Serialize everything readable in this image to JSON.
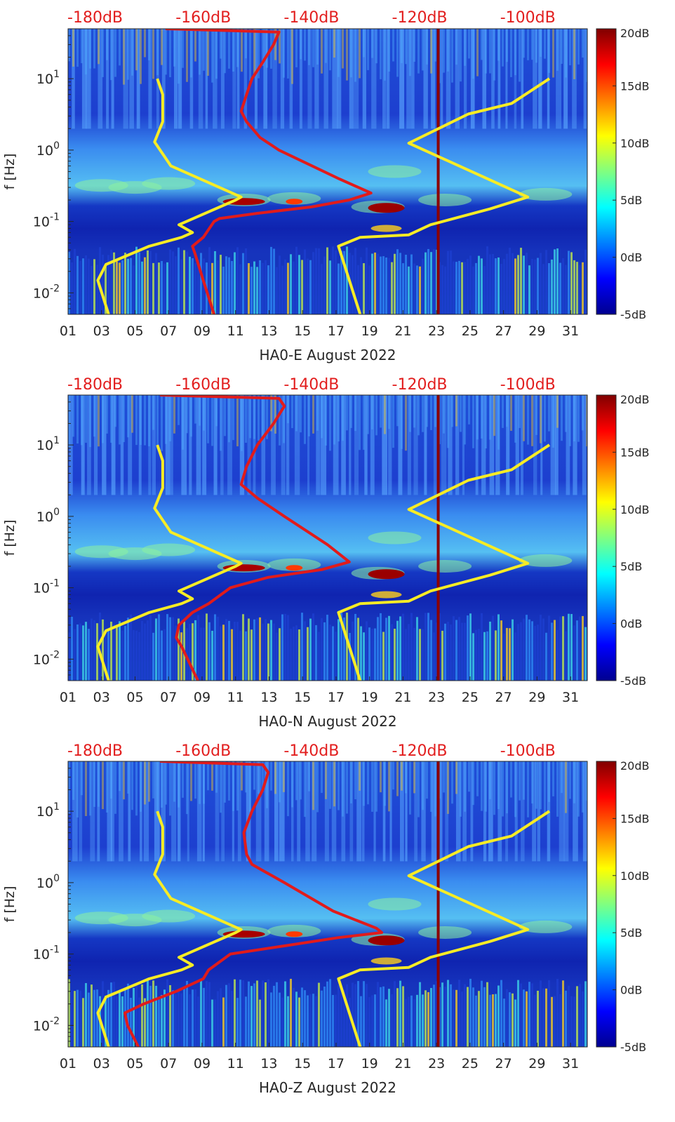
{
  "chart_data": [
    {
      "type": "heatmap",
      "title": "HA0-E August 2022",
      "xlabel": "HA0-E August 2022",
      "ylabel": "f [Hz]",
      "x_unit": "day of August 2022",
      "xlim": [
        1,
        32
      ],
      "x_ticks": [
        "01",
        "03",
        "05",
        "07",
        "09",
        "11",
        "13",
        "15",
        "17",
        "19",
        "21",
        "23",
        "25",
        "27",
        "29",
        "31"
      ],
      "y_scale": "log",
      "ylim": [
        0.005,
        50
      ],
      "y_ticks": [
        "10^-2",
        "10^-1",
        "10^0",
        "10^1"
      ],
      "top_axis_ticks": [
        "-180dB",
        "-160dB",
        "-140dB",
        "-120dB",
        "-100dB"
      ],
      "top_axis_range_db": [
        -185,
        -89
      ],
      "colorbar": {
        "ticks": [
          "20dB",
          "15dB",
          "10dB",
          "5dB",
          "0dB",
          "-5dB"
        ],
        "range": [
          -5,
          20
        ],
        "colormap": "jet"
      },
      "vertical_line_day": 23.1,
      "series": [
        {
          "name": "Noise model low (yellow)",
          "color": "#f7ec25",
          "points_db_hz": [
            [
              -177.5,
              0.005
            ],
            [
              -179.5,
              0.015
            ],
            [
              -178,
              0.025
            ],
            [
              -170,
              0.045
            ],
            [
              -164,
              0.06
            ],
            [
              -162,
              0.07
            ],
            [
              -164.5,
              0.09
            ],
            [
              -154,
              0.2
            ],
            [
              -153,
              0.22
            ],
            [
              -166,
              0.6
            ],
            [
              -169,
              1.3
            ],
            [
              -167.5,
              2.5
            ],
            [
              -167.5,
              6
            ],
            [
              -168.5,
              10
            ]
          ]
        },
        {
          "name": "Noise model high (yellow)",
          "color": "#f7ec25",
          "points_db_hz": [
            [
              -131,
              0.005
            ],
            [
              -135,
              0.045
            ],
            [
              -131,
              0.06
            ],
            [
              -122,
              0.065
            ],
            [
              -118,
              0.09
            ],
            [
              -107,
              0.15
            ],
            [
              -100,
              0.22
            ],
            [
              -122,
              1.25
            ],
            [
              -111,
              3.2
            ],
            [
              -103,
              4.5
            ],
            [
              -96,
              10
            ]
          ]
        },
        {
          "name": "Spectrum (red)",
          "color": "#e11b1b",
          "points_db_hz": [
            [
              -158,
              0.005
            ],
            [
              -160,
              0.015
            ],
            [
              -161.5,
              0.035
            ],
            [
              -162,
              0.045
            ],
            [
              -160,
              0.06
            ],
            [
              -158,
              0.1
            ],
            [
              -157,
              0.11
            ],
            [
              -150,
              0.13
            ],
            [
              -140,
              0.16
            ],
            [
              -133,
              0.2
            ],
            [
              -129,
              0.25
            ],
            [
              -135,
              0.4
            ],
            [
              -146,
              1
            ],
            [
              -149.5,
              1.5
            ],
            [
              -152,
              2.5
            ],
            [
              -153,
              3.5
            ],
            [
              -152,
              6
            ],
            [
              -151,
              10
            ],
            [
              -149,
              17
            ],
            [
              -147,
              30
            ],
            [
              -146,
              45
            ],
            [
              -167,
              50
            ]
          ]
        }
      ]
    },
    {
      "type": "heatmap",
      "title": "HA0-N August 2022",
      "xlabel": "HA0-N August 2022",
      "ylabel": "f [Hz]",
      "x_unit": "day of August 2022",
      "xlim": [
        1,
        32
      ],
      "x_ticks": [
        "01",
        "03",
        "05",
        "07",
        "09",
        "11",
        "13",
        "15",
        "17",
        "19",
        "21",
        "23",
        "25",
        "27",
        "29",
        "31"
      ],
      "y_scale": "log",
      "ylim": [
        0.005,
        50
      ],
      "y_ticks": [
        "10^-2",
        "10^-1",
        "10^0",
        "10^1"
      ],
      "top_axis_ticks": [
        "-180dB",
        "-160dB",
        "-140dB",
        "-120dB",
        "-100dB"
      ],
      "top_axis_range_db": [
        -185,
        -89
      ],
      "colorbar": {
        "ticks": [
          "20dB",
          "15dB",
          "10dB",
          "5dB",
          "0dB",
          "-5dB"
        ],
        "range": [
          -5,
          20
        ],
        "colormap": "jet"
      },
      "vertical_line_day": 23.1,
      "series": [
        {
          "name": "Noise model low (yellow)",
          "color": "#f7ec25",
          "points_db_hz": [
            [
              -177.5,
              0.005
            ],
            [
              -179.5,
              0.015
            ],
            [
              -178,
              0.025
            ],
            [
              -170,
              0.045
            ],
            [
              -164,
              0.06
            ],
            [
              -162,
              0.07
            ],
            [
              -164.5,
              0.09
            ],
            [
              -154,
              0.2
            ],
            [
              -153,
              0.22
            ],
            [
              -166,
              0.6
            ],
            [
              -169,
              1.3
            ],
            [
              -167.5,
              2.5
            ],
            [
              -167.5,
              6
            ],
            [
              -168.5,
              10
            ]
          ]
        },
        {
          "name": "Noise model high (yellow)",
          "color": "#f7ec25",
          "points_db_hz": [
            [
              -131,
              0.005
            ],
            [
              -135,
              0.045
            ],
            [
              -131,
              0.06
            ],
            [
              -122,
              0.065
            ],
            [
              -118,
              0.09
            ],
            [
              -107,
              0.15
            ],
            [
              -100,
              0.22
            ],
            [
              -122,
              1.25
            ],
            [
              -111,
              3.2
            ],
            [
              -103,
              4.5
            ],
            [
              -96,
              10
            ]
          ]
        },
        {
          "name": "Spectrum (red)",
          "color": "#e11b1b",
          "points_db_hz": [
            [
              -161,
              0.005
            ],
            [
              -164,
              0.015
            ],
            [
              -165,
              0.02
            ],
            [
              -164.5,
              0.03
            ],
            [
              -162,
              0.045
            ],
            [
              -159,
              0.06
            ],
            [
              -155,
              0.1
            ],
            [
              -148,
              0.14
            ],
            [
              -138,
              0.18
            ],
            [
              -133,
              0.23
            ],
            [
              -137,
              0.4
            ],
            [
              -145,
              1
            ],
            [
              -150,
              1.8
            ],
            [
              -153,
              2.8
            ],
            [
              -152,
              5
            ],
            [
              -150,
              10
            ],
            [
              -147,
              20
            ],
            [
              -145,
              35
            ],
            [
              -146,
              45
            ],
            [
              -168,
              50
            ]
          ]
        }
      ]
    },
    {
      "type": "heatmap",
      "title": "HA0-Z August 2022",
      "xlabel": "HA0-Z August 2022",
      "ylabel": "f [Hz]",
      "x_unit": "day of August 2022",
      "xlim": [
        1,
        32
      ],
      "x_ticks": [
        "01",
        "03",
        "05",
        "07",
        "09",
        "11",
        "13",
        "15",
        "17",
        "19",
        "21",
        "23",
        "25",
        "27",
        "29",
        "31"
      ],
      "y_scale": "log",
      "ylim": [
        0.005,
        50
      ],
      "y_ticks": [
        "10^-2",
        "10^-1",
        "10^0",
        "10^1"
      ],
      "top_axis_ticks": [
        "-180dB",
        "-160dB",
        "-140dB",
        "-120dB",
        "-100dB"
      ],
      "top_axis_range_db": [
        -185,
        -89
      ],
      "colorbar": {
        "ticks": [
          "20dB",
          "15dB",
          "10dB",
          "5dB",
          "0dB",
          "-5dB"
        ],
        "range": [
          -5,
          20
        ],
        "colormap": "jet"
      },
      "vertical_line_day": 23.1,
      "series": [
        {
          "name": "Noise model low (yellow)",
          "color": "#f7ec25",
          "points_db_hz": [
            [
              -177.5,
              0.005
            ],
            [
              -179.5,
              0.015
            ],
            [
              -178,
              0.025
            ],
            [
              -170,
              0.045
            ],
            [
              -164,
              0.06
            ],
            [
              -162,
              0.07
            ],
            [
              -164.5,
              0.09
            ],
            [
              -154,
              0.2
            ],
            [
              -153,
              0.22
            ],
            [
              -166,
              0.6
            ],
            [
              -169,
              1.3
            ],
            [
              -167.5,
              2.5
            ],
            [
              -167.5,
              6
            ],
            [
              -168.5,
              10
            ]
          ]
        },
        {
          "name": "Noise model high (yellow)",
          "color": "#f7ec25",
          "points_db_hz": [
            [
              -131,
              0.005
            ],
            [
              -135,
              0.045
            ],
            [
              -131,
              0.06
            ],
            [
              -122,
              0.065
            ],
            [
              -118,
              0.09
            ],
            [
              -107,
              0.15
            ],
            [
              -100,
              0.22
            ],
            [
              -122,
              1.25
            ],
            [
              -111,
              3.2
            ],
            [
              -103,
              4.5
            ],
            [
              -96,
              10
            ]
          ]
        },
        {
          "name": "Spectrum (red)",
          "color": "#e11b1b",
          "points_db_hz": [
            [
              -172,
              0.005
            ],
            [
              -174,
              0.01
            ],
            [
              -174.5,
              0.015
            ],
            [
              -171,
              0.02
            ],
            [
              -165,
              0.03
            ],
            [
              -160,
              0.045
            ],
            [
              -159,
              0.06
            ],
            [
              -155,
              0.1
            ],
            [
              -145,
              0.13
            ],
            [
              -135,
              0.17
            ],
            [
              -127,
              0.2
            ],
            [
              -128,
              0.23
            ],
            [
              -136,
              0.4
            ],
            [
              -145,
              1
            ],
            [
              -151,
              1.8
            ],
            [
              -152,
              2.5
            ],
            [
              -152.5,
              5
            ],
            [
              -151,
              10
            ],
            [
              -149,
              20
            ],
            [
              -148,
              35
            ],
            [
              -149,
              45
            ],
            [
              -168,
              50
            ]
          ]
        }
      ]
    }
  ]
}
